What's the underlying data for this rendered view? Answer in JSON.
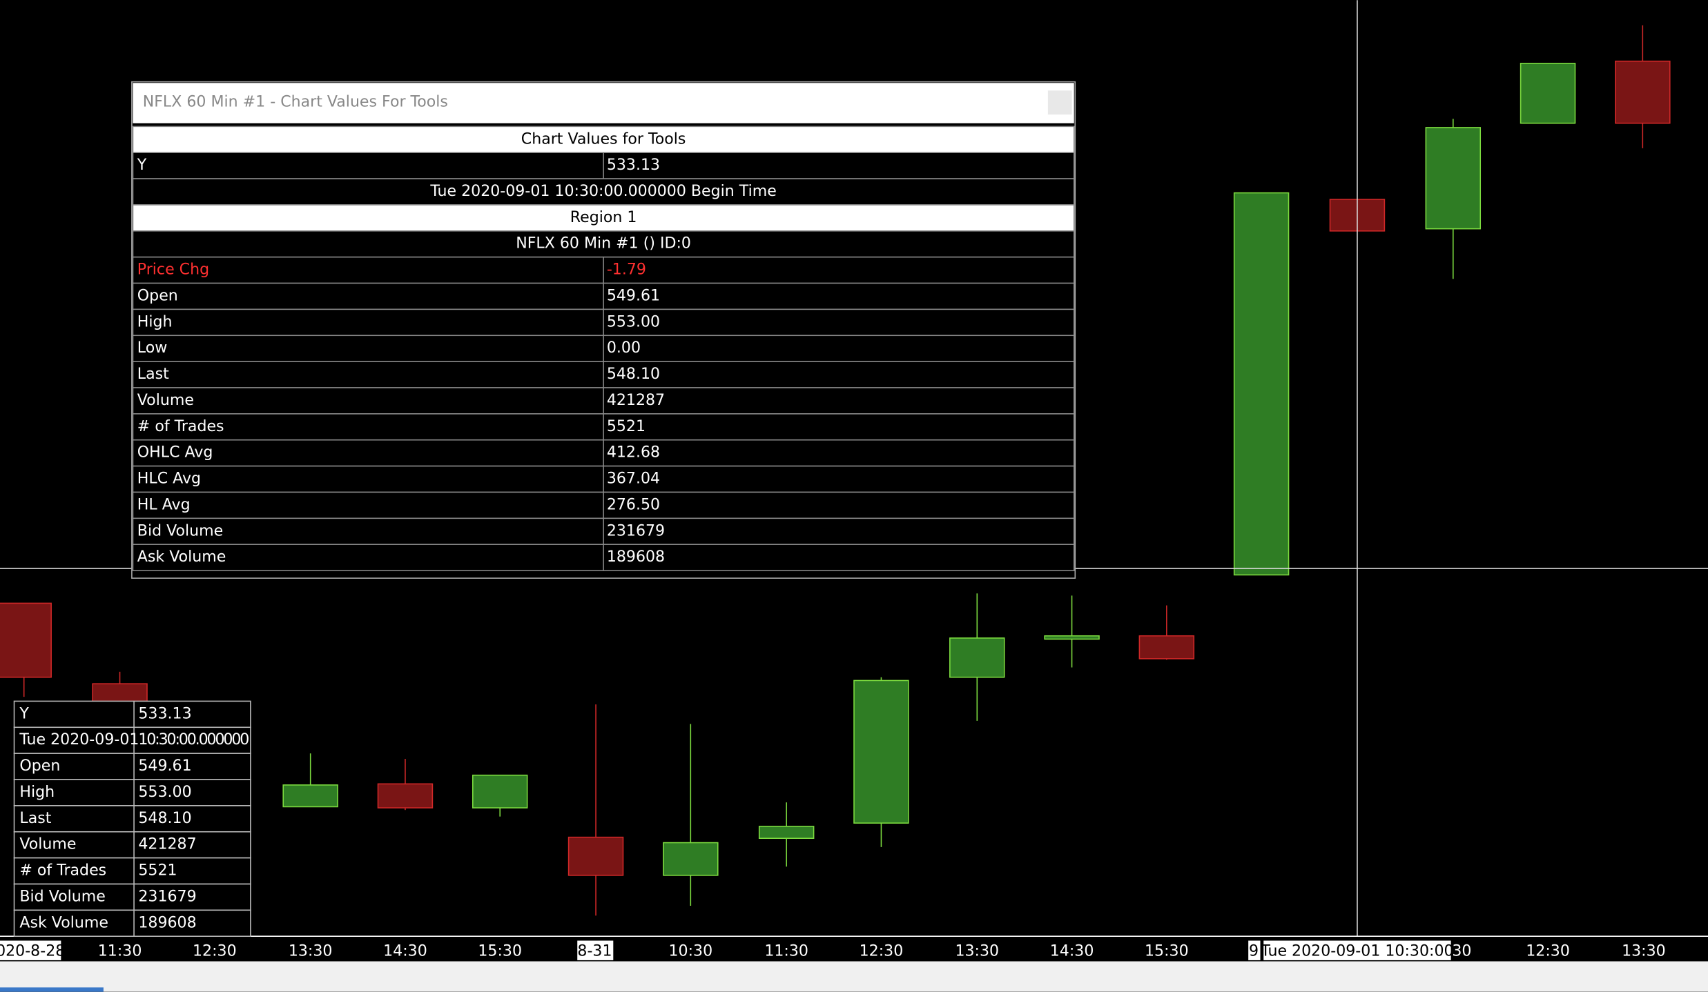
{
  "window": {
    "title": "NFLX  60 Min  #1 - Chart Values For Tools"
  },
  "panel": {
    "header": "Chart Values for Tools",
    "y_row": [
      "Y",
      "533.13"
    ],
    "time": "Tue 2020-09-01  10:30:00.000000 Begin Time",
    "region": "Region 1",
    "study": "NFLX  60 Min  #1 ()  ID:0",
    "rows": [
      [
        "Price Chg",
        "-1.79"
      ],
      [
        "Open",
        "549.61"
      ],
      [
        "High",
        "553.00"
      ],
      [
        "Low",
        "0.00"
      ],
      [
        "Last",
        "548.10"
      ],
      [
        "Volume",
        "421287"
      ],
      [
        "# of Trades",
        "5521"
      ],
      [
        "OHLC Avg",
        "412.68"
      ],
      [
        "HLC Avg",
        "367.04"
      ],
      [
        "HL Avg",
        "276.50"
      ],
      [
        "Bid Volume",
        "231679"
      ],
      [
        "Ask Volume",
        "189608"
      ]
    ]
  },
  "mini_table": {
    "rows": [
      [
        "Y",
        "533.13"
      ],
      [
        "Tue 2020-09-01",
        "10:30:00.000000"
      ],
      [
        "Open",
        "549.61"
      ],
      [
        "High",
        "553.00"
      ],
      [
        "Last",
        "548.10"
      ],
      [
        "Volume",
        "421287"
      ],
      [
        "# of Trades",
        "5521"
      ],
      [
        "Bid Volume",
        "231679"
      ],
      [
        "Ask Volume",
        "189608"
      ]
    ]
  },
  "x_axis": {
    "labels": [
      "020-8-28",
      "11:30",
      "12:30",
      "13:30",
      "14:30",
      "15:30",
      "8-31",
      "10:30",
      "11:30",
      "12:30",
      "13:30",
      "14:30",
      "15:30",
      "9",
      "30",
      "12:30",
      "13:30"
    ],
    "crosshair_label": "Tue 2020-09-01  10:30:00"
  }
}
